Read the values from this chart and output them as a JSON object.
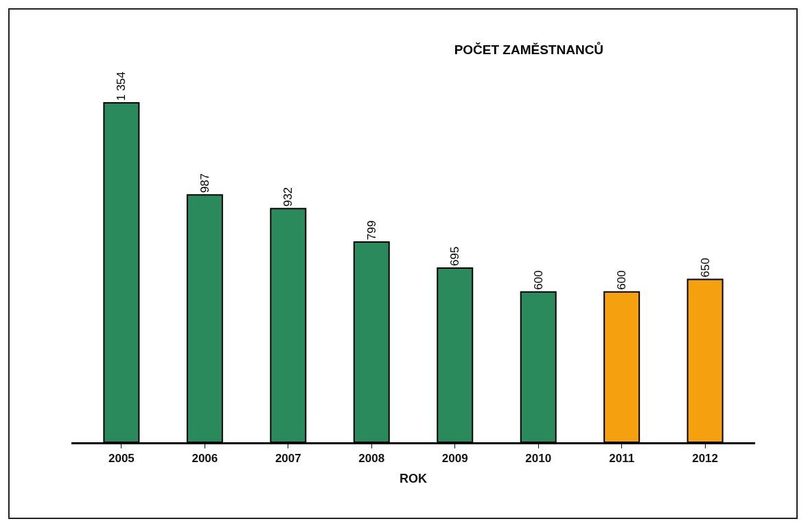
{
  "chart_data": {
    "type": "bar",
    "title": "POČET ZAMĚSTNANCŮ",
    "xlabel": "ROK",
    "categories": [
      "2005",
      "2006",
      "2007",
      "2008",
      "2009",
      "2010",
      "2011",
      "2012"
    ],
    "values": [
      1354,
      987,
      932,
      799,
      695,
      600,
      600,
      650
    ],
    "value_labels": [
      "1 354",
      "987",
      "932",
      "799",
      "695",
      "600",
      "600",
      "650"
    ],
    "colors": [
      "#2a8a5c",
      "#2a8a5c",
      "#2a8a5c",
      "#2a8a5c",
      "#2a8a5c",
      "#2a8a5c",
      "#f5a00f",
      "#f5a00f"
    ]
  }
}
